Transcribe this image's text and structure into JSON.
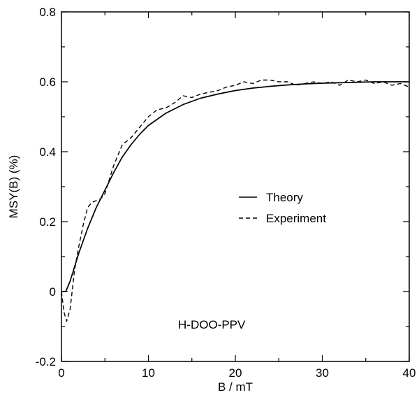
{
  "chart_data": {
    "type": "line",
    "xlabel": "B / mT",
    "ylabel": "MSY(B) (%)",
    "xlim": [
      0,
      40
    ],
    "ylim": [
      -0.2,
      0.8
    ],
    "x_ticks": [
      0,
      10,
      20,
      30,
      40
    ],
    "x_tick_labels": [
      "0",
      "10",
      "20",
      "30",
      "40"
    ],
    "y_ticks": [
      -0.2,
      0,
      0.2,
      0.4,
      0.6,
      0.8
    ],
    "y_tick_labels": [
      "-0.2",
      "0",
      "0.2",
      "0.4",
      "0.6",
      "0.8"
    ],
    "grid": false,
    "legend_position": "center-right",
    "annotation": "H-DOO-PPV",
    "series": [
      {
        "name": "Theory",
        "line_style": "solid",
        "x": [
          0,
          0.5,
          1,
          2,
          3,
          4,
          5,
          6,
          7,
          8,
          9,
          10,
          12,
          14,
          16,
          18,
          20,
          22,
          24,
          26,
          28,
          30,
          33,
          36,
          40
        ],
        "y": [
          0,
          0.0,
          0.03,
          0.11,
          0.18,
          0.24,
          0.29,
          0.34,
          0.385,
          0.42,
          0.45,
          0.475,
          0.51,
          0.535,
          0.553,
          0.565,
          0.575,
          0.582,
          0.587,
          0.591,
          0.594,
          0.596,
          0.598,
          0.6,
          0.6
        ]
      },
      {
        "name": "Experiment",
        "line_style": "dashed",
        "x": [
          0,
          0.3,
          0.6,
          1,
          1.5,
          2,
          2.5,
          3,
          3.5,
          4,
          4.5,
          5,
          5.5,
          6,
          6.5,
          7,
          7.5,
          8,
          9,
          10,
          11,
          12,
          13,
          14,
          15,
          16,
          17,
          18,
          19,
          20,
          21,
          22,
          23,
          24,
          25,
          26,
          27,
          28,
          29,
          30,
          31,
          32,
          33,
          34,
          35,
          36,
          37,
          38,
          39,
          40
        ],
        "y": [
          0,
          -0.06,
          -0.085,
          -0.05,
          0.06,
          0.13,
          0.19,
          0.24,
          0.255,
          0.26,
          0.265,
          0.28,
          0.32,
          0.36,
          0.39,
          0.42,
          0.43,
          0.44,
          0.47,
          0.5,
          0.52,
          0.525,
          0.54,
          0.56,
          0.555,
          0.565,
          0.57,
          0.575,
          0.585,
          0.59,
          0.6,
          0.595,
          0.605,
          0.605,
          0.6,
          0.6,
          0.59,
          0.595,
          0.6,
          0.595,
          0.6,
          0.59,
          0.605,
          0.6,
          0.605,
          0.595,
          0.6,
          0.59,
          0.595,
          0.585
        ]
      }
    ]
  }
}
